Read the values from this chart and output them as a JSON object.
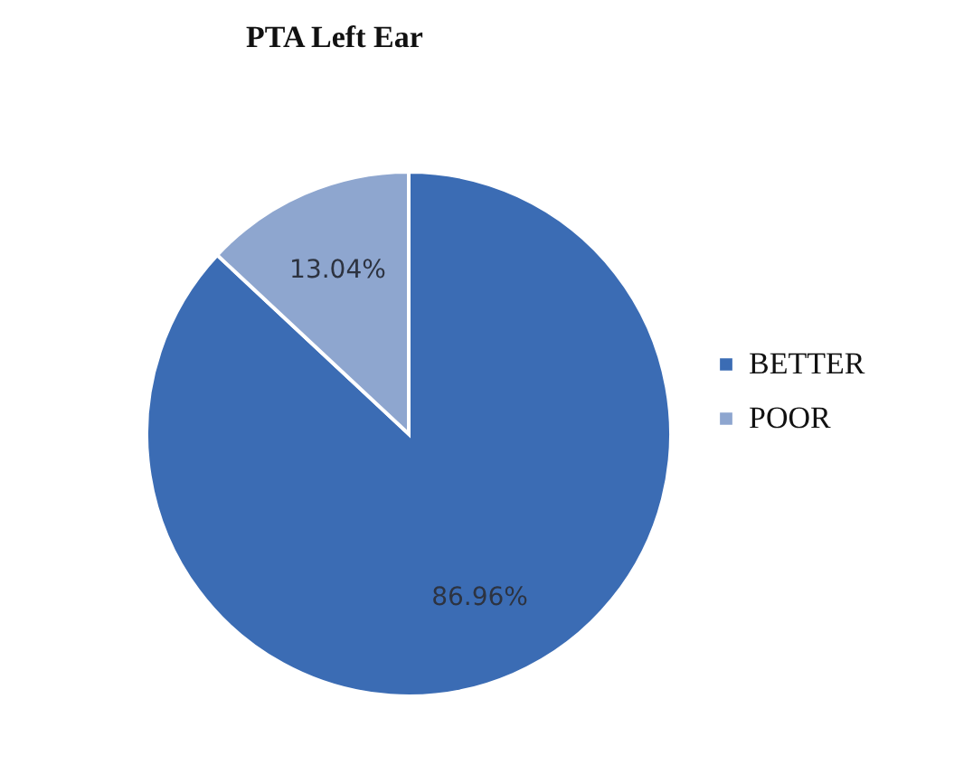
{
  "chart_data": {
    "type": "pie",
    "title": "PTA Left Ear",
    "categories": [
      "BETTER",
      "POOR"
    ],
    "values": [
      86.96,
      13.04
    ],
    "colors": [
      "#3b6cb4",
      "#8ea6cf"
    ],
    "value_labels": [
      "86.96%",
      "13.04%"
    ],
    "legend": "right"
  }
}
